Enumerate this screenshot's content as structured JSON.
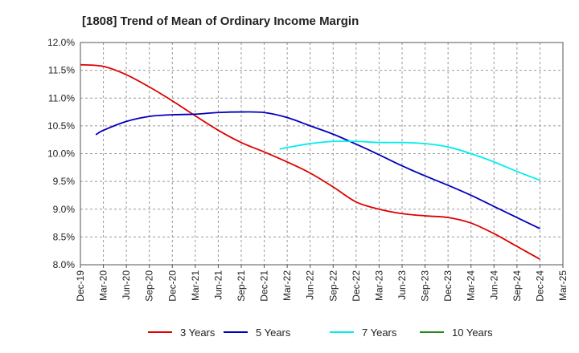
{
  "chart_data": {
    "type": "line",
    "title": "[1808]  Trend of Mean of Ordinary Income Margin",
    "xlabel": "",
    "ylabel": "",
    "ylim": [
      8.0,
      12.0
    ],
    "y_ticks": [
      "8.0%",
      "8.5%",
      "9.0%",
      "9.5%",
      "10.0%",
      "10.5%",
      "11.0%",
      "11.5%",
      "12.0%"
    ],
    "x_ticks": [
      "Dec-19",
      "Mar-20",
      "Jun-20",
      "Sep-20",
      "Dec-20",
      "Mar-21",
      "Jun-21",
      "Sep-21",
      "Dec-21",
      "Mar-22",
      "Jun-22",
      "Sep-22",
      "Dec-22",
      "Mar-23",
      "Jun-23",
      "Sep-23",
      "Dec-23",
      "Mar-24",
      "Jun-24",
      "Sep-24",
      "Dec-24",
      "Mar-25"
    ],
    "grid": true,
    "legend_position": "bottom",
    "series": [
      {
        "name": "3 Years",
        "color": "#dd0000",
        "points": [
          [
            0,
            11.6
          ],
          [
            1,
            11.57
          ],
          [
            2,
            11.42
          ],
          [
            3,
            11.2
          ],
          [
            4,
            10.95
          ],
          [
            5,
            10.68
          ],
          [
            6,
            10.42
          ],
          [
            7,
            10.2
          ],
          [
            8,
            10.03
          ],
          [
            9,
            9.85
          ],
          [
            10,
            9.65
          ],
          [
            11,
            9.4
          ],
          [
            12,
            9.13
          ],
          [
            13,
            9.0
          ],
          [
            14,
            8.92
          ],
          [
            15,
            8.88
          ],
          [
            16,
            8.85
          ],
          [
            17,
            8.75
          ],
          [
            18,
            8.56
          ],
          [
            19,
            8.33
          ],
          [
            20,
            8.1
          ]
        ]
      },
      {
        "name": "5 Years",
        "color": "#0000bb",
        "points": [
          [
            0.67,
            10.34
          ],
          [
            1,
            10.42
          ],
          [
            2,
            10.58
          ],
          [
            3,
            10.67
          ],
          [
            4,
            10.7
          ],
          [
            5,
            10.71
          ],
          [
            6,
            10.74
          ],
          [
            7,
            10.75
          ],
          [
            8,
            10.74
          ],
          [
            9,
            10.65
          ],
          [
            10,
            10.5
          ],
          [
            11,
            10.35
          ],
          [
            12,
            10.17
          ],
          [
            13,
            9.98
          ],
          [
            14,
            9.78
          ],
          [
            15,
            9.6
          ],
          [
            16,
            9.43
          ],
          [
            17,
            9.25
          ],
          [
            18,
            9.05
          ],
          [
            19,
            8.85
          ],
          [
            20,
            8.65
          ]
        ]
      },
      {
        "name": "7 Years",
        "color": "#00eeee",
        "points": [
          [
            8.67,
            10.08
          ],
          [
            9,
            10.11
          ],
          [
            10,
            10.18
          ],
          [
            11,
            10.22
          ],
          [
            12,
            10.22
          ],
          [
            13,
            10.2
          ],
          [
            14,
            10.2
          ],
          [
            15,
            10.18
          ],
          [
            16,
            10.12
          ],
          [
            17,
            10.0
          ],
          [
            18,
            9.85
          ],
          [
            19,
            9.68
          ],
          [
            20,
            9.52
          ]
        ]
      },
      {
        "name": "10 Years",
        "color": "#228822",
        "points": []
      }
    ]
  }
}
